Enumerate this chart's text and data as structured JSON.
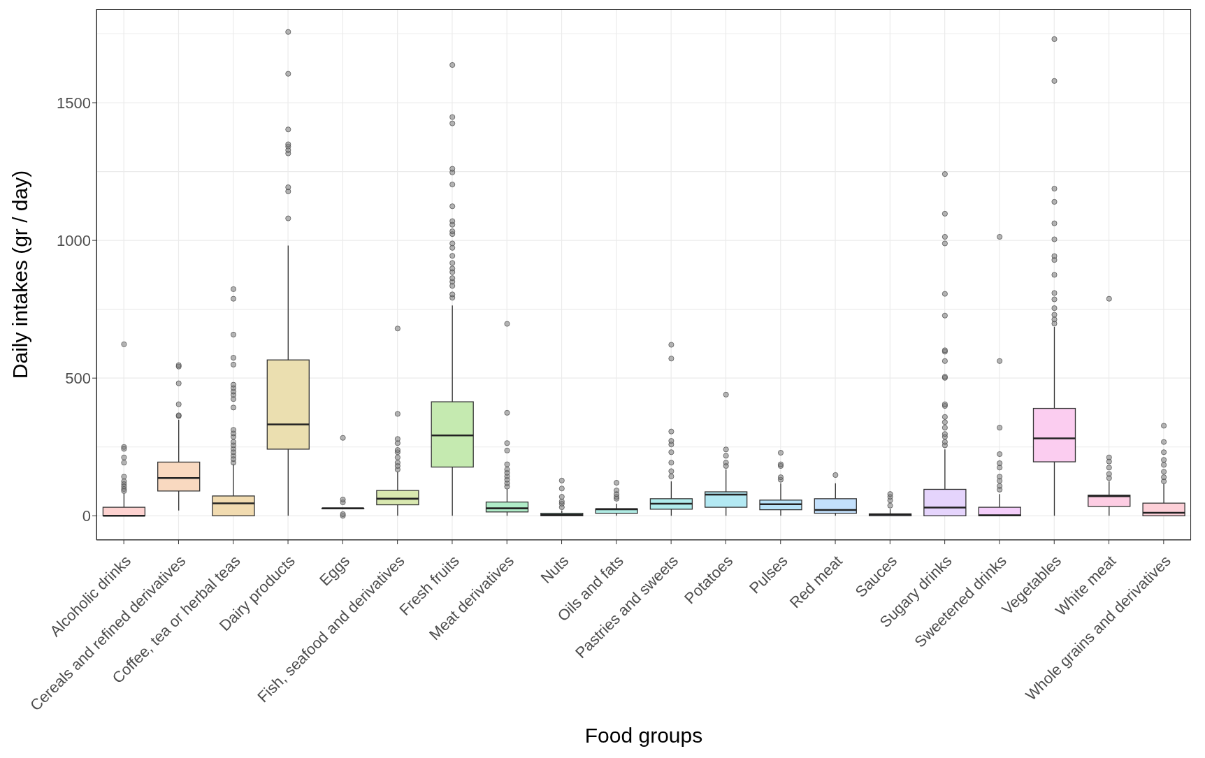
{
  "chart_data": {
    "type": "box",
    "xlabel": "Food groups",
    "ylabel": "Daily intakes (gr / day)",
    "categories": [
      "Alcoholic drinks",
      "Cereals and refined derivatives",
      "Coffee, tea or herbal teas",
      "Dairy products",
      "Eggs",
      "Fish, seafood and derivatives",
      "Fresh fruits",
      "Meat derivatives",
      "Nuts",
      "Oils and fats",
      "Pastries and sweets",
      "Potatoes",
      "Pulses",
      "Red meat",
      "Sauces",
      "Sugary drinks",
      "Sweetened drinks",
      "Vegetables",
      "White meat",
      "Whole grains and derivatives"
    ],
    "colors": [
      "#fdd2d0",
      "#f9d9c0",
      "#f1dbb0",
      "#ebdfb0",
      "#e3e4b0",
      "#d9e8b0",
      "#c5eab0",
      "#b0ecc8",
      "#b0ecdc",
      "#b0ece4",
      "#b0ecec",
      "#b3e9f3",
      "#b7e3f8",
      "#c3e0fc",
      "#d5d8fc",
      "#e5d4fc",
      "#f4cefa",
      "#fbcdf0",
      "#fdcde3",
      "#fdd0d8"
    ],
    "boxes": [
      {
        "low": 0,
        "q1": 0,
        "median": 0,
        "q3": 31,
        "high": 81,
        "outliers": [
          250,
          243,
          212,
          193,
          142,
          125,
          115,
          106,
          97,
          90,
          623
        ]
      },
      {
        "low": 19,
        "q1": 90,
        "median": 137,
        "q3": 195,
        "high": 349,
        "outliers": [
          362,
          365,
          405,
          481,
          542,
          547
        ]
      },
      {
        "low": 0,
        "q1": 0,
        "median": 45,
        "q3": 72,
        "high": 187,
        "outliers": [
          193,
          206,
          218,
          231,
          243,
          256,
          268,
          287,
          299,
          312,
          393,
          424,
          439,
          451,
          464,
          476,
          549,
          574,
          658,
          788,
          823
        ]
      },
      {
        "low": 0,
        "q1": 242,
        "median": 332,
        "q3": 566,
        "high": 981,
        "outliers": [
          1080,
          1178,
          1193,
          1316,
          1328,
          1341,
          1349,
          1403,
          1605,
          1757
        ]
      },
      {
        "low": 27,
        "q1": 27,
        "median": 27,
        "q3": 27,
        "high": 27,
        "outliers": [
          0,
          6,
          49,
          59,
          283
        ]
      },
      {
        "low": 0,
        "q1": 40,
        "median": 62,
        "q3": 92,
        "high": 160,
        "outliers": [
          168,
          181,
          193,
          212,
          231,
          239,
          264,
          279,
          370,
          680
        ]
      },
      {
        "low": 0,
        "q1": 177,
        "median": 292,
        "q3": 414,
        "high": 764,
        "outliers": [
          792,
          804,
          835,
          850,
          863,
          885,
          898,
          918,
          944,
          973,
          989,
          1023,
          1033,
          1057,
          1070,
          1124,
          1203,
          1247,
          1260,
          1425,
          1448,
          1637
        ]
      },
      {
        "low": 0,
        "q1": 14,
        "median": 27,
        "q3": 50,
        "high": 97,
        "outliers": [
          106,
          118,
          131,
          143,
          156,
          168,
          187,
          237,
          264,
          374,
          697
        ]
      },
      {
        "low": 0,
        "q1": 0,
        "median": 4,
        "q3": 9,
        "high": 19,
        "outliers": [
          31,
          44,
          52,
          69,
          99,
          128
        ]
      },
      {
        "low": 0,
        "q1": 9,
        "median": 24,
        "q3": 25,
        "high": 44,
        "outliers": [
          62,
          69,
          79,
          92,
          120
        ]
      },
      {
        "low": 0,
        "q1": 24,
        "median": 44,
        "q3": 62,
        "high": 125,
        "outliers": [
          143,
          162,
          193,
          231,
          259,
          272,
          306,
          571,
          621
        ]
      },
      {
        "low": 0,
        "q1": 31,
        "median": 77,
        "q3": 87,
        "high": 168,
        "outliers": [
          181,
          193,
          218,
          241,
          440
        ]
      },
      {
        "low": 0,
        "q1": 22,
        "median": 42,
        "q3": 57,
        "high": 118,
        "outliers": [
          131,
          140,
          181,
          187,
          229
        ]
      },
      {
        "low": 0,
        "q1": 9,
        "median": 21,
        "q3": 62,
        "high": 118,
        "outliers": [
          148
        ]
      },
      {
        "low": 0,
        "q1": 0,
        "median": 5,
        "q3": 7,
        "high": 25,
        "outliers": [
          37,
          56,
          69,
          79
        ]
      },
      {
        "low": 0,
        "q1": 0,
        "median": 30,
        "q3": 96,
        "high": 241,
        "outliers": [
          256,
          268,
          287,
          297,
          320,
          340,
          359,
          399,
          405,
          501,
          505,
          562,
          596,
          601,
          727,
          806,
          989,
          1013,
          1097,
          1241
        ]
      },
      {
        "low": 0,
        "q1": 0,
        "median": 2,
        "q3": 31,
        "high": 79,
        "outliers": [
          95,
          108,
          127,
          142,
          175,
          191,
          224,
          320,
          562,
          1013
        ]
      },
      {
        "low": 0,
        "q1": 196,
        "median": 281,
        "q3": 390,
        "high": 686,
        "outliers": [
          698,
          713,
          730,
          754,
          786,
          809,
          875,
          929,
          943,
          1004,
          1062,
          1140,
          1188,
          1579,
          1731
        ]
      },
      {
        "low": 0,
        "q1": 34,
        "median": 71,
        "q3": 75,
        "high": 125,
        "outliers": [
          137,
          152,
          175,
          197,
          212,
          788
        ]
      },
      {
        "low": 0,
        "q1": 0,
        "median": 11,
        "q3": 46,
        "high": 115,
        "outliers": [
          125,
          140,
          160,
          185,
          203,
          231,
          268,
          327
        ]
      }
    ],
    "ylim": [
      -88,
      1840
    ],
    "yticks": [
      0,
      500,
      1000,
      1500
    ],
    "grid": true
  }
}
